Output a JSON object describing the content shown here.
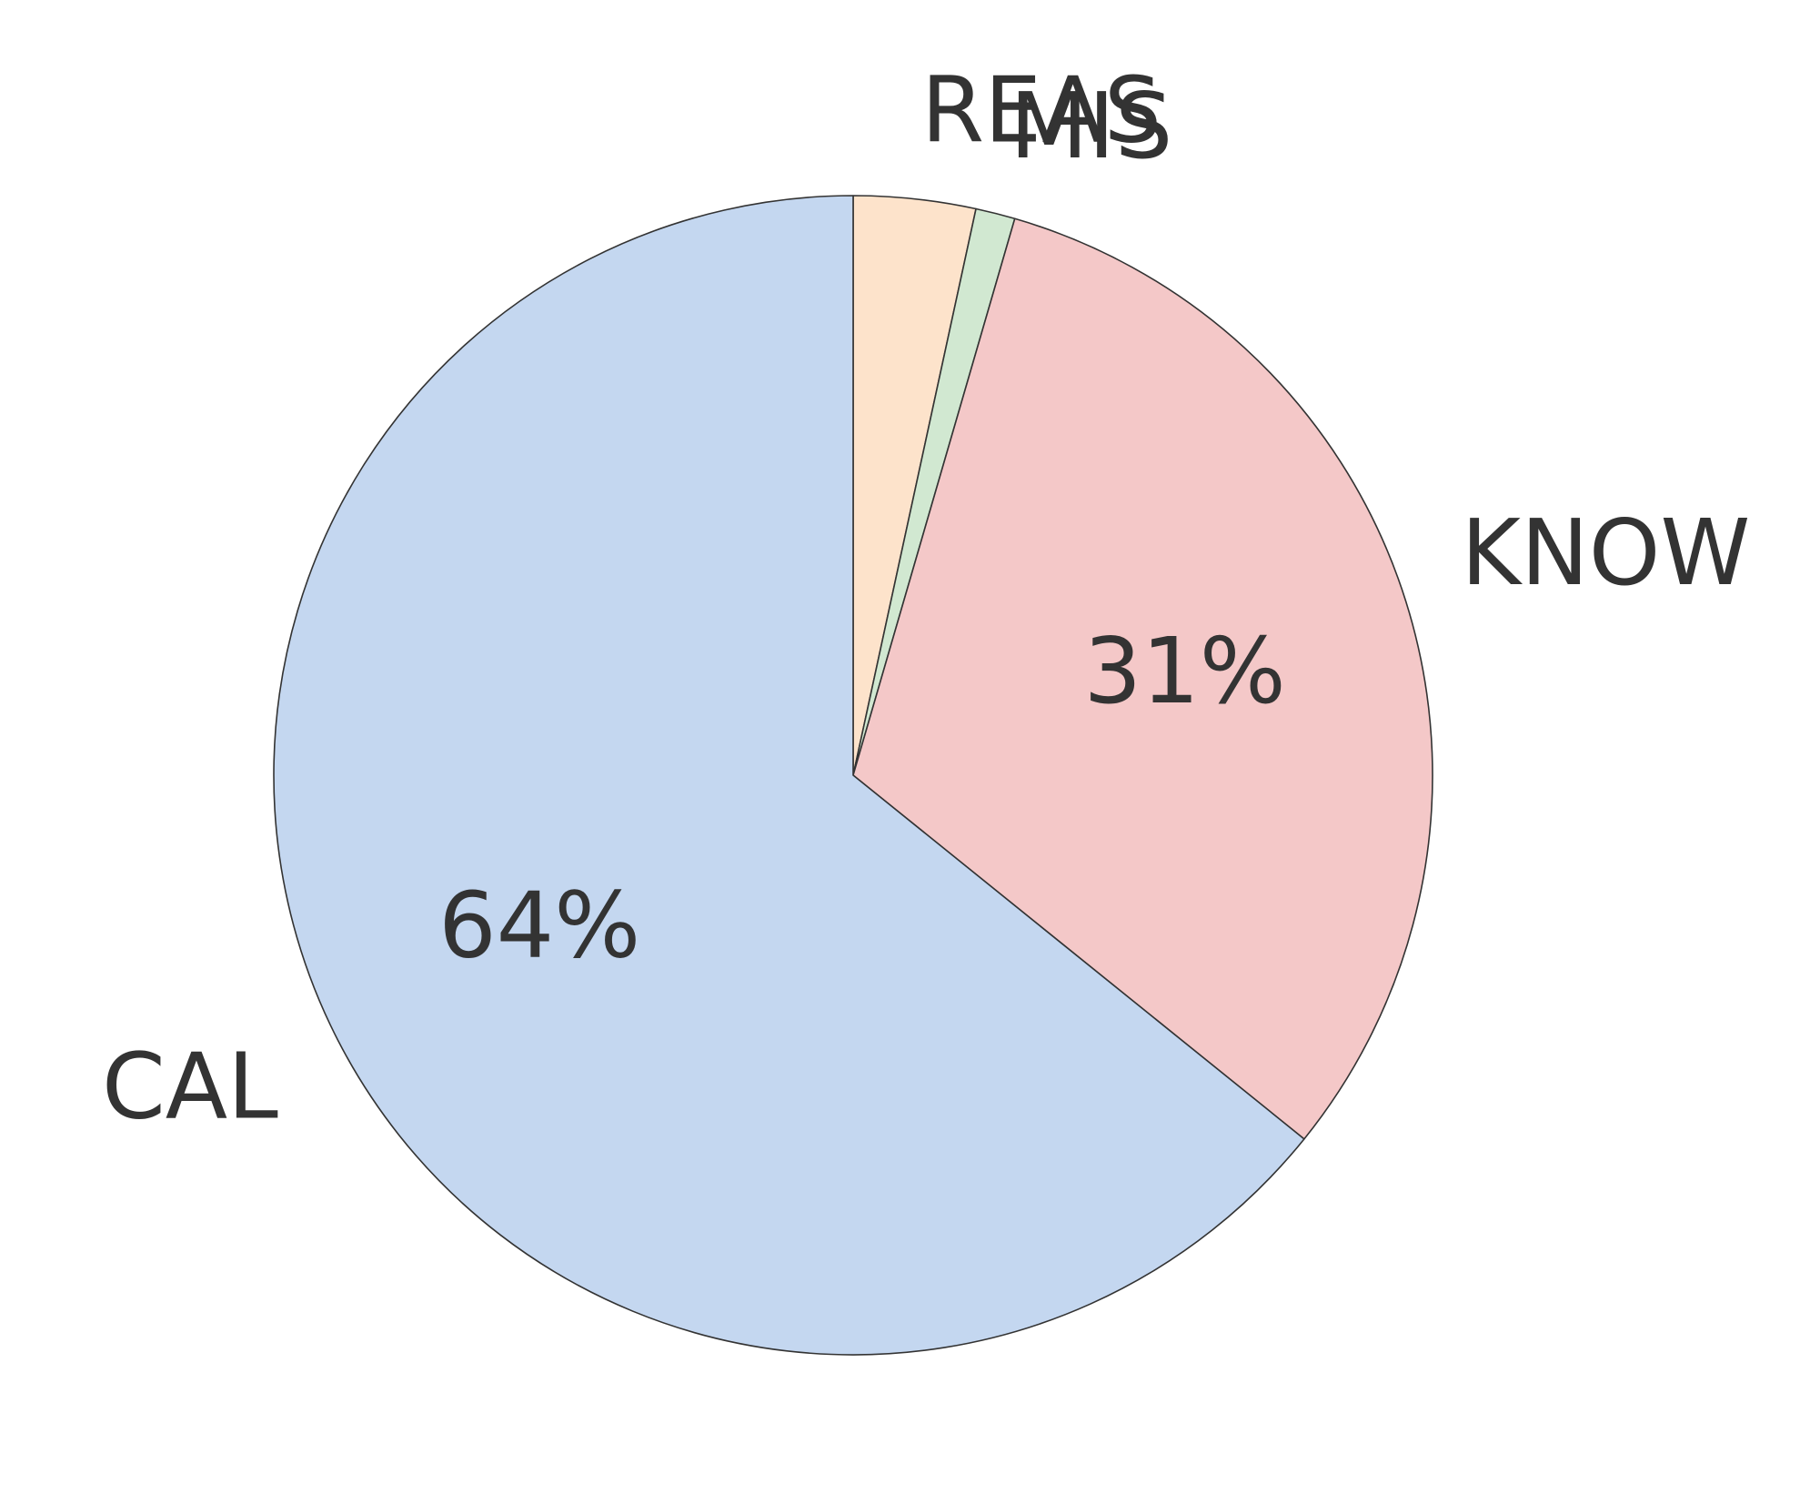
{
  "chart_data": {
    "type": "pie",
    "start_angle_deg": 90,
    "direction": "clockwise",
    "slices": [
      {
        "label": "REAS",
        "value": 3.4,
        "pct_label": "",
        "color": "#fde3cb"
      },
      {
        "label": "MIS",
        "value": 1.1,
        "pct_label": "",
        "color": "#d1e8d1"
      },
      {
        "label": "KNOW",
        "value": 31.3,
        "pct_label": "31%",
        "color": "#f4c8c8"
      },
      {
        "label": "CAL",
        "value": 64.2,
        "pct_label": "64%",
        "color": "#c4d7f0"
      }
    ]
  }
}
